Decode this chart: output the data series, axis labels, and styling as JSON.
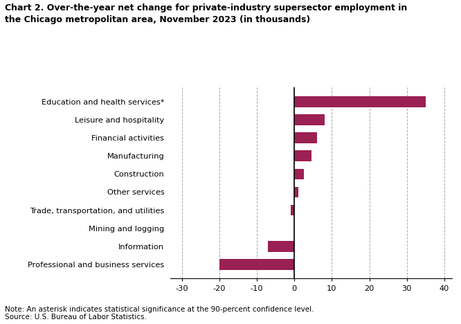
{
  "title": "Chart 2. Over-the-year net change for private-industry supersector employment in\nthe Chicago metropolitan area, November 2023 (in thousands)",
  "categories": [
    "Professional and business services",
    "Information",
    "Mining and logging",
    "Trade, transportation, and utilities",
    "Other services",
    "Construction",
    "Manufacturing",
    "Financial activities",
    "Leisure and hospitality",
    "Education and health services*"
  ],
  "values": [
    -20.0,
    -7.0,
    0.0,
    -1.0,
    1.0,
    2.5,
    4.5,
    6.0,
    8.0,
    35.0
  ],
  "bar_color": "#9b2053",
  "xlim": [
    -33,
    42
  ],
  "xticks": [
    -30,
    -20,
    -10,
    0,
    10,
    20,
    30,
    40
  ],
  "grid_color": "#aaaaaa",
  "note_line1": "Note: An asterisk indicates statistical significance at the 90-percent confidence level.",
  "note_line2": "Source: U.S. Bureau of Labor Statistics.",
  "background_color": "#ffffff",
  "bar_height": 0.6
}
